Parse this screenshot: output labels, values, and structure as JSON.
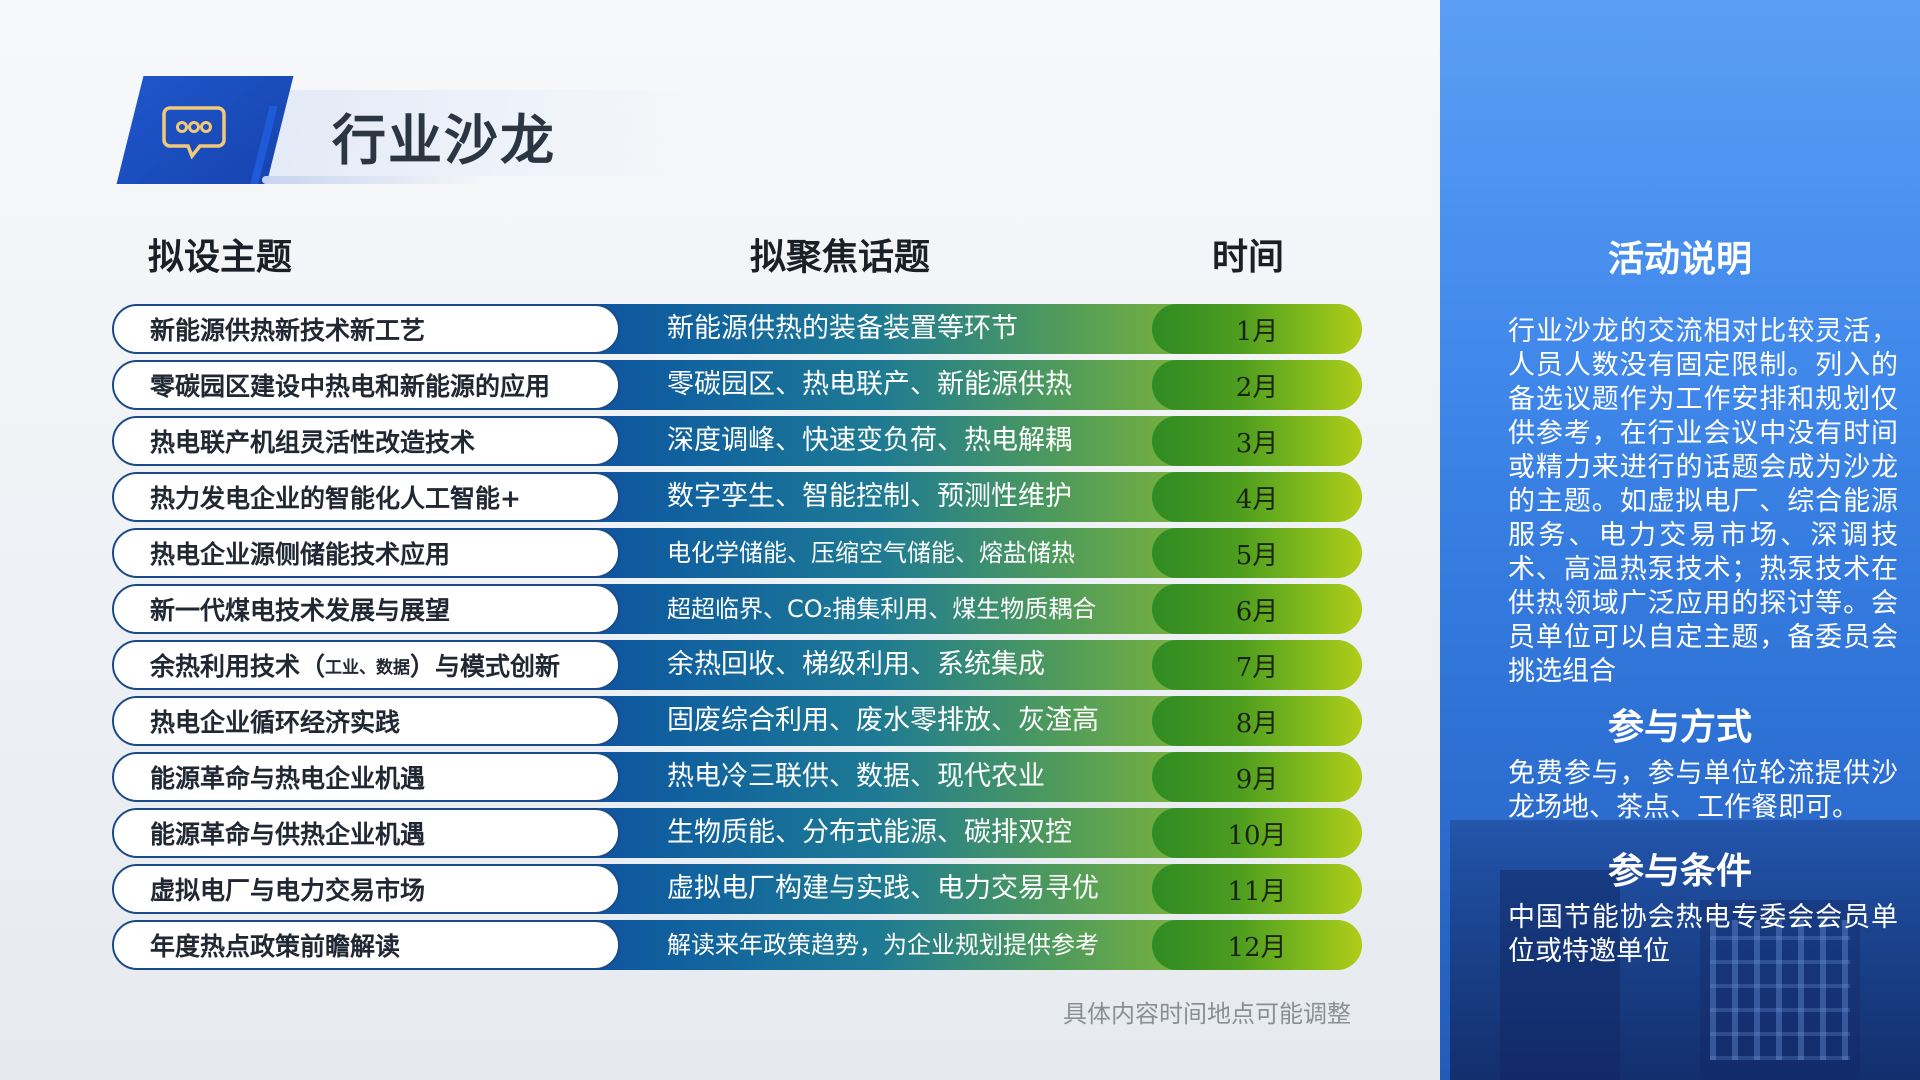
{
  "header": {
    "title": "行业沙龙",
    "icon": "chat-bubble-icon"
  },
  "columns": {
    "topic": "拟设主题",
    "focus": "拟聚焦话题",
    "time": "时间"
  },
  "rows": [
    {
      "topic": "新能源供热新技术新工艺",
      "focus": "新能源供热的装备装置等环节",
      "month": "1月"
    },
    {
      "topic": "零碳园区建设中热电和新能源的应用",
      "focus": "零碳园区、热电联产、新能源供热",
      "month": "2月"
    },
    {
      "topic": "热电联产机组灵活性改造技术",
      "focus": "深度调峰、快速变负荷、热电解耦",
      "month": "3月"
    },
    {
      "topic": "热力发电企业的智能化人工智能+",
      "focus": "数字孪生、智能控制、预测性维护",
      "month": "4月"
    },
    {
      "topic": "热电企业源侧储能技术应用",
      "focus": "电化学储能、压缩空气储能、熔盐储热",
      "month": "5月"
    },
    {
      "topic": "新一代煤电技术发展与展望",
      "focus": "超超临界、CO₂捕集利用、煤生物质耦合",
      "month": "6月"
    },
    {
      "topic_pre": "余热利用技术（",
      "topic_small": "工业、数据",
      "topic_post": "）与模式创新",
      "focus": "余热回收、梯级利用、系统集成",
      "month": "7月"
    },
    {
      "topic": "热电企业循环经济实践",
      "focus": "固废综合利用、废水零排放、灰渣高",
      "month": "8月"
    },
    {
      "topic": "能源革命与热电企业机遇",
      "focus": "热电冷三联供、数据、现代农业",
      "month": "9月"
    },
    {
      "topic": "能源革命与供热企业机遇",
      "focus": "生物质能、分布式能源、碳排双控",
      "month": "10月"
    },
    {
      "topic": "虚拟电厂与电力交易市场",
      "focus": "虚拟电厂构建与实践、电力交易寻优",
      "month": "11月"
    },
    {
      "topic": "年度热点政策前瞻解读",
      "focus": "解读来年政策趋势，为企业规划提供参考",
      "month": "12月"
    }
  ],
  "footnote": "具体内容时间地点可能调整",
  "side": {
    "activity_title": "活动说明",
    "activity_text": "行业沙龙的交流相对比较灵活，人员人数没有固定限制。列入的备选议题作为工作安排和规划仅供参考，在行业会议中没有时间或精力来进行的话题会成为沙龙的主题。如虚拟电厂、综合能源服务、电力交易市场、深调技术、高温热泵技术；热泵技术在供热领域广泛应用的探讨等。会员单位可以自定主题，备委员会挑选组合",
    "join_title": "参与方式",
    "join_text": "免费参与，参与单位轮流提供沙龙场地、茶点、工作餐即可。",
    "cond_title": "参与条件",
    "cond_text": "中国节能协会热电专委会会员单位或特邀单位"
  }
}
